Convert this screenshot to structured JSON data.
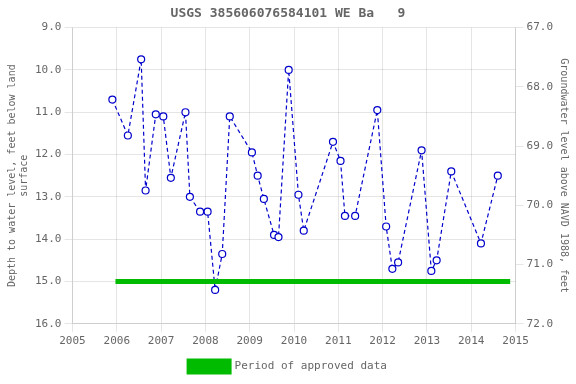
{
  "chart_data": {
    "type": "line",
    "title": "USGS 385606076584101 WE Ba   9",
    "ylabel": "Depth to water level, feet below land\nsurface",
    "y2label": "Groundwater level above NAVD 1988, feet",
    "xlim": [
      2005,
      2015
    ],
    "xticks": [
      2005,
      2006,
      2007,
      2008,
      2009,
      2010,
      2011,
      2012,
      2013,
      2014,
      2015
    ],
    "ylim": [
      16.0,
      9.0
    ],
    "yticks": [
      {
        "value": 9.0,
        "label": "9.0"
      },
      {
        "value": 10.0,
        "label": "10.0"
      },
      {
        "value": 11.0,
        "label": "11.0"
      },
      {
        "value": 12.0,
        "label": "12.0"
      },
      {
        "value": 13.0,
        "label": "13.0"
      },
      {
        "value": 14.0,
        "label": "14.0"
      },
      {
        "value": 15.0,
        "label": "15.0"
      },
      {
        "value": 16.0,
        "label": "16.0"
      }
    ],
    "y2lim": [
      72.0,
      67.0
    ],
    "y2ticks": [
      {
        "value": 72.0,
        "label": "72.0"
      },
      {
        "value": 71.0,
        "label": "71.0"
      },
      {
        "value": 70.0,
        "label": "70.0"
      },
      {
        "value": 69.0,
        "label": "69.0"
      },
      {
        "value": 68.0,
        "label": "68.0"
      },
      {
        "value": 67.0,
        "label": "67.0"
      }
    ],
    "grid": true,
    "legend": "bottom",
    "series": [
      {
        "color": "#0000cc",
        "marker": "circle",
        "line_style": "dashed",
        "x": [
          2005.9,
          2006.25,
          2006.55,
          2006.65,
          2006.88,
          2007.05,
          2007.22,
          2007.55,
          2007.65,
          2007.88,
          2008.05,
          2008.22,
          2008.38,
          2008.55,
          2009.05,
          2009.18,
          2009.32,
          2009.55,
          2009.65,
          2009.88,
          2010.1,
          2010.22,
          2010.88,
          2011.05,
          2011.15,
          2011.38,
          2011.88,
          2012.08,
          2012.22,
          2012.35,
          2012.88,
          2013.1,
          2013.22,
          2013.55,
          2014.22,
          2014.6
        ],
        "values": [
          10.7,
          11.55,
          9.75,
          12.85,
          11.05,
          11.1,
          12.55,
          11.0,
          13.0,
          13.35,
          13.35,
          15.2,
          14.35,
          11.1,
          11.95,
          12.5,
          13.05,
          13.9,
          13.95,
          10.0,
          12.95,
          13.8,
          11.7,
          12.15,
          13.45,
          13.45,
          10.95,
          13.7,
          14.7,
          14.55,
          11.9,
          14.75,
          14.5,
          12.4,
          14.1,
          12.5
        ]
      },
      {
        "name": "Period of approved data",
        "color": "#00bb00",
        "line_style": "solid",
        "x": [
          2005.97,
          2014.88
        ],
        "values": [
          15.0,
          15.0
        ]
      }
    ]
  }
}
